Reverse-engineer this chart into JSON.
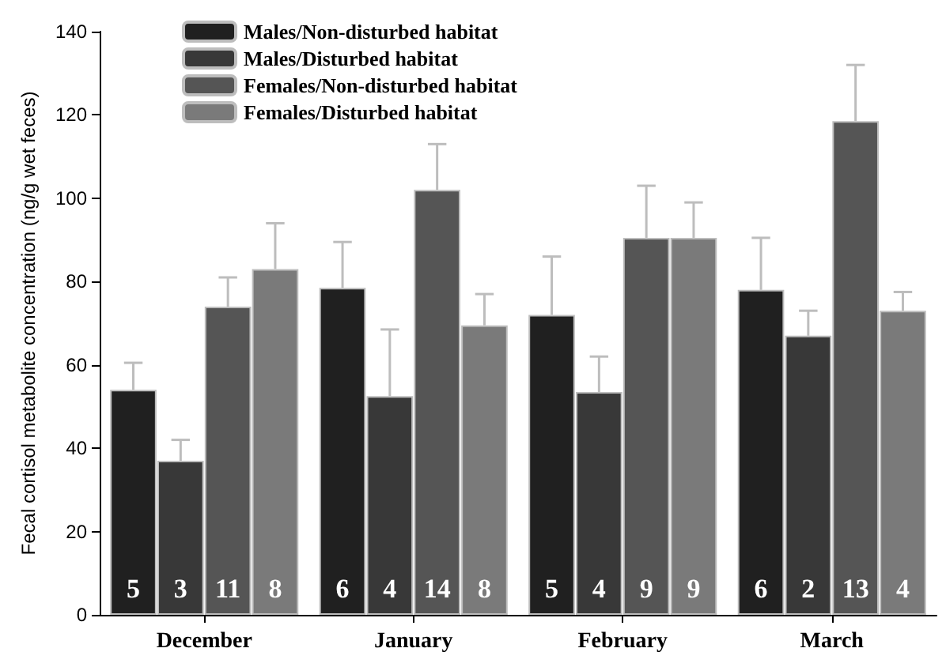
{
  "chart_data": {
    "type": "bar",
    "ylabel": "Fecal cortisol metabolite concentration (ng/g wet feces)",
    "categories": [
      "December",
      "January",
      "February",
      "March"
    ],
    "series": [
      {
        "name": "Males/Non-disturbed habitat",
        "color": "#202020",
        "values": [
          54,
          78.5,
          72,
          78
        ],
        "errors": [
          [
            54,
            60.5
          ],
          [
            78.5,
            89.5
          ],
          [
            72,
            86
          ],
          [
            78,
            90.5
          ]
        ]
      },
      {
        "name": "Males/Disturbed habitat",
        "color": "#383838",
        "values": [
          37,
          52.5,
          53.5,
          67
        ],
        "errors": [
          [
            37,
            42
          ],
          [
            52.5,
            68.5
          ],
          [
            53.5,
            62
          ],
          [
            67,
            73
          ]
        ]
      },
      {
        "name": "Females/Non-disturbed habitat",
        "color": "#555555",
        "values": [
          74,
          102,
          90.5,
          118.5
        ],
        "errors": [
          [
            74,
            81
          ],
          [
            102,
            113
          ],
          [
            90.5,
            103
          ],
          [
            118.5,
            132
          ]
        ]
      },
      {
        "name": "Females/Disturbed habitat",
        "color": "#7a7a7a",
        "values": [
          83,
          69.5,
          90.5,
          73
        ],
        "errors": [
          [
            83,
            94
          ],
          [
            69.5,
            77
          ],
          [
            90.5,
            99
          ],
          [
            73,
            77.5
          ]
        ]
      }
    ],
    "annotations": [
      "5",
      "3",
      "11",
      "8",
      "6",
      "4",
      "14",
      "8",
      "5",
      "4",
      "9",
      "9",
      "6",
      "2",
      "13",
      "4"
    ],
    "ylim": [
      0,
      140
    ],
    "yticks": [
      0,
      20,
      40,
      60,
      80,
      100,
      120,
      140
    ],
    "grid": false,
    "legend": "top left"
  }
}
